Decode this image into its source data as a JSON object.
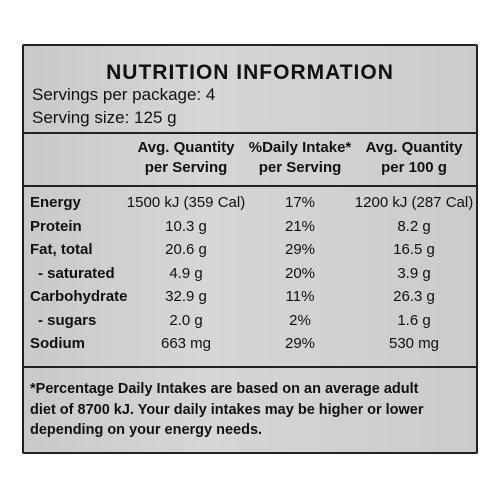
{
  "title": "NUTRITION INFORMATION",
  "servings_per_package": "Servings per package: 4",
  "serving_size": "Serving size: 125 g",
  "table": {
    "columns": [
      [
        "Avg. Quantity",
        "per Serving"
      ],
      [
        "%Daily Intake*",
        "per Serving"
      ],
      [
        "Avg. Quantity",
        "per 100 g"
      ]
    ],
    "rows": [
      [
        "Energy",
        "1500 kJ (359 Cal)",
        "17%",
        "1200 kJ (287 Cal)"
      ],
      [
        "Protein",
        "10.3 g",
        "21%",
        "8.2 g"
      ],
      [
        "Fat, total",
        "20.6 g",
        "29%",
        "16.5 g"
      ],
      [
        "- saturated",
        "4.9 g",
        "20%",
        "3.9 g"
      ],
      [
        "Carbohydrate",
        "32.9 g",
        "11%",
        "26.3 g"
      ],
      [
        "- sugars",
        "2.0 g",
        "2%",
        "1.6 g"
      ],
      [
        "Sodium",
        "663 mg",
        "29%",
        "530 mg"
      ]
    ]
  },
  "footnote": [
    "*Percentage Daily Intakes are based on an average adult",
    "diet of 8700 kJ. Your daily intakes may be higher or lower",
    "depending on your energy needs."
  ]
}
